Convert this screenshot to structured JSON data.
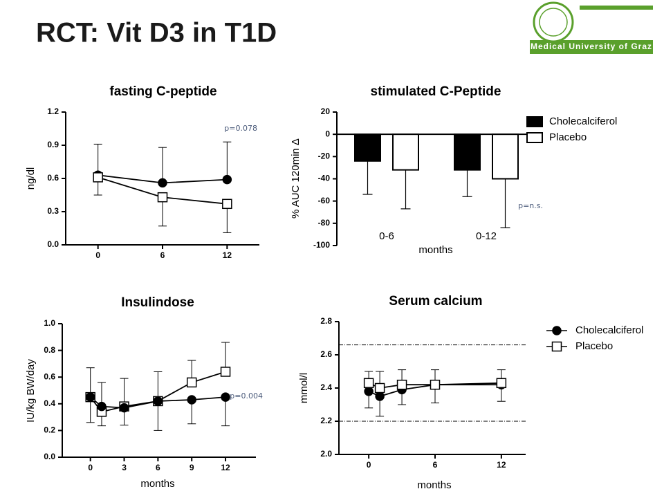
{
  "title": "RCT: Vit D3 in T1D",
  "logo": "Medical University of Graz",
  "chart_data": [
    {
      "type": "line",
      "title": "fasting C-peptide",
      "y_label": "ng/dl",
      "annotation": "p=0.078",
      "xlim": [
        -3,
        15
      ],
      "xticks": [
        0,
        6,
        12
      ],
      "ylim": [
        0,
        1.2
      ],
      "yticks": [
        {
          "value": 0,
          "label": "0.0"
        },
        0.3,
        0.6,
        0.9,
        1.2
      ],
      "x": [
        0,
        6,
        12
      ],
      "series": [
        {
          "color": "#000000",
          "marker": "circle",
          "error_direction": "up",
          "values": [
            0.63,
            0.56,
            0.59
          ],
          "errors": [
            0.28,
            0.32,
            0.34
          ]
        },
        {
          "color": "#ffffff",
          "marker": "square",
          "error_direction": "down",
          "values": [
            0.61,
            0.43,
            0.37
          ],
          "errors": [
            0.16,
            0.26,
            0.26
          ]
        }
      ]
    },
    {
      "type": "bar",
      "title": "stimulated C-Peptide",
      "y_label": "% AUC 120min Δ",
      "x_label": "months",
      "annotation": "p=n.s.",
      "ylim": [
        -100,
        20
      ],
      "yticks": [
        -100,
        -80,
        -60,
        -40,
        -20,
        0,
        20
      ],
      "categories": [
        "0-6",
        "0-12"
      ],
      "legend": "right",
      "series": [
        {
          "name": "Cholecalciferol",
          "color": "#000000",
          "error_direction": "down",
          "values": [
            -24,
            -32
          ],
          "errors": [
            30,
            24
          ]
        },
        {
          "name": "Placebo",
          "color": "#ffffff",
          "error_direction": "down",
          "values": [
            -32,
            -40
          ],
          "errors": [
            35,
            44
          ]
        }
      ]
    },
    {
      "type": "line",
      "title": "Insulindose",
      "y_label": "IU/kg BW/day",
      "x_label": "months",
      "annotation": "p=0.004",
      "xlim": [
        -2.5,
        14.7
      ],
      "xticks": [
        0,
        3,
        6,
        9,
        12
      ],
      "ylim": [
        0,
        1
      ],
      "yticks": [
        {
          "value": 0,
          "label": "0.0"
        },
        0.2,
        0.4,
        0.6,
        0.8,
        {
          "value": 1,
          "label": "1.0"
        }
      ],
      "x": [
        0,
        1,
        3,
        6,
        9,
        12
      ],
      "series": [
        {
          "color": "#ffffff",
          "marker": "square",
          "error_direction": "up",
          "values": [
            0.45,
            0.34,
            0.38,
            0.42,
            0.56,
            0.64
          ],
          "errors": [
            0.22,
            0.22,
            0.21,
            0.22,
            0.165,
            0.22
          ]
        },
        {
          "color": "#000000",
          "marker": "circle",
          "error_direction": "down",
          "values": [
            0.45,
            0.38,
            0.37,
            0.42,
            0.43,
            0.45
          ],
          "errors": [
            0.19,
            0.145,
            0.13,
            0.22,
            0.18,
            0.215
          ]
        }
      ]
    },
    {
      "type": "line",
      "title": "Serum calcium",
      "y_label": "mmol/l",
      "x_label": "months",
      "xlim": [
        -2.7,
        14.2
      ],
      "xticks": [
        0,
        6,
        12
      ],
      "ylim": [
        2,
        2.8
      ],
      "yticks": [
        {
          "value": 2,
          "label": "2.0"
        },
        2.2,
        2.4,
        2.6,
        2.8
      ],
      "x": [
        0,
        1,
        3,
        6,
        12
      ],
      "reference_lines": [
        2.66,
        2.2
      ],
      "legend": "right",
      "series": [
        {
          "name": "Cholecalciferol",
          "color": "#000000",
          "marker": "circle",
          "error_direction": "down",
          "values": [
            2.38,
            2.35,
            2.39,
            2.42,
            2.42
          ],
          "errors": [
            0.1,
            0.12,
            0.09,
            0.11,
            0.1
          ]
        },
        {
          "name": "Placebo",
          "color": "#ffffff",
          "marker": "square",
          "error_direction": "up",
          "values": [
            2.43,
            2.4,
            2.42,
            2.42,
            2.43
          ],
          "errors": [
            0.07,
            0.1,
            0.09,
            0.09,
            0.08
          ]
        }
      ]
    }
  ]
}
